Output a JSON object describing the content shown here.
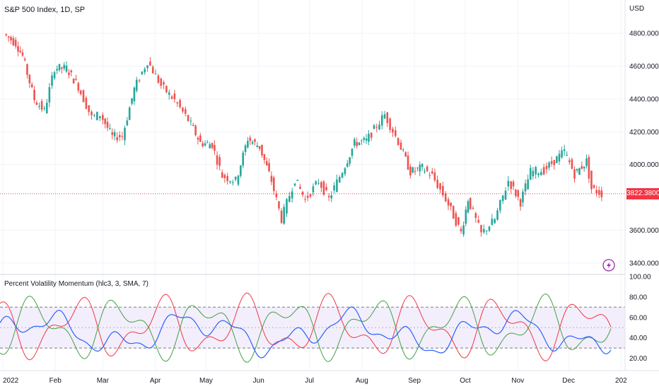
{
  "chart_data": {
    "type": "candlestick",
    "title": "S&P 500 Index, 1D, SP",
    "currency": "USD",
    "price_axis": {
      "ticks": [
        "4800.00000",
        "4600.00000",
        "4400.00000",
        "4200.00000",
        "4000.00000",
        "3600.00000",
        "3400.00000"
      ],
      "range": [
        3330,
        4900
      ]
    },
    "last_price": "3822.38000",
    "x_axis": {
      "labels": [
        "2022",
        "Feb",
        "Mar",
        "Apr",
        "May",
        "Jun",
        "Jul",
        "Aug",
        "Sep",
        "Oct",
        "Nov",
        "Dec",
        "202"
      ]
    },
    "price_series": [
      {
        "date": "2022-01-03",
        "close": 4796
      },
      {
        "date": "2022-01-10",
        "close": 4740
      },
      {
        "date": "2022-01-14",
        "close": 4662
      },
      {
        "date": "2022-01-21",
        "close": 4398
      },
      {
        "date": "2022-01-27",
        "close": 4326
      },
      {
        "date": "2022-02-02",
        "close": 4589
      },
      {
        "date": "2022-02-09",
        "close": 4587
      },
      {
        "date": "2022-02-16",
        "close": 4475
      },
      {
        "date": "2022-02-24",
        "close": 4288
      },
      {
        "date": "2022-03-01",
        "close": 4306
      },
      {
        "date": "2022-03-08",
        "close": 4170
      },
      {
        "date": "2022-03-14",
        "close": 4173
      },
      {
        "date": "2022-03-21",
        "close": 4461
      },
      {
        "date": "2022-03-29",
        "close": 4631
      },
      {
        "date": "2022-04-06",
        "close": 4481
      },
      {
        "date": "2022-04-14",
        "close": 4392
      },
      {
        "date": "2022-04-22",
        "close": 4272
      },
      {
        "date": "2022-04-29",
        "close": 4132
      },
      {
        "date": "2022-05-06",
        "close": 4123
      },
      {
        "date": "2022-05-12",
        "close": 3930
      },
      {
        "date": "2022-05-20",
        "close": 3901
      },
      {
        "date": "2022-05-27",
        "close": 4158
      },
      {
        "date": "2022-06-03",
        "close": 4108
      },
      {
        "date": "2022-06-10",
        "close": 3901
      },
      {
        "date": "2022-06-16",
        "close": 3667
      },
      {
        "date": "2022-06-24",
        "close": 3912
      },
      {
        "date": "2022-06-30",
        "close": 3785
      },
      {
        "date": "2022-07-08",
        "close": 3899
      },
      {
        "date": "2022-07-14",
        "close": 3790
      },
      {
        "date": "2022-07-22",
        "close": 3962
      },
      {
        "date": "2022-07-29",
        "close": 4130
      },
      {
        "date": "2022-08-05",
        "close": 4145
      },
      {
        "date": "2022-08-16",
        "close": 4305
      },
      {
        "date": "2022-08-24",
        "close": 4140
      },
      {
        "date": "2022-08-31",
        "close": 3955
      },
      {
        "date": "2022-09-07",
        "close": 3980
      },
      {
        "date": "2022-09-13",
        "close": 3932
      },
      {
        "date": "2022-09-21",
        "close": 3789
      },
      {
        "date": "2022-09-30",
        "close": 3586
      },
      {
        "date": "2022-10-04",
        "close": 3791
      },
      {
        "date": "2022-10-12",
        "close": 3577
      },
      {
        "date": "2022-10-20",
        "close": 3665
      },
      {
        "date": "2022-10-28",
        "close": 3901
      },
      {
        "date": "2022-11-04",
        "close": 3771
      },
      {
        "date": "2022-11-10",
        "close": 3956
      },
      {
        "date": "2022-11-18",
        "close": 3965
      },
      {
        "date": "2022-11-30",
        "close": 4080
      },
      {
        "date": "2022-12-06",
        "close": 3941
      },
      {
        "date": "2022-12-13",
        "close": 4020
      },
      {
        "date": "2022-12-16",
        "close": 3852
      },
      {
        "date": "2022-12-22",
        "close": 3822
      }
    ],
    "indicator": {
      "title": "Percent Volatility Momentum (hlc3, 3, SMA, 7)",
      "ticks": [
        "100.00",
        "80.00",
        "60.00",
        "40.00",
        "20.00"
      ],
      "range": [
        8,
        102
      ],
      "upper_band": 70,
      "mid_band": 50,
      "lower_band": 30
    },
    "colors": {
      "up": "#26a69a",
      "down": "#ef5350",
      "indicator_blue": "#2962ff",
      "indicator_red": "#f23645",
      "indicator_green": "#43a047",
      "band_fill": "#f3eefb",
      "grid": "#f0f3fa"
    },
    "icons": [
      "lightning-icon"
    ]
  }
}
